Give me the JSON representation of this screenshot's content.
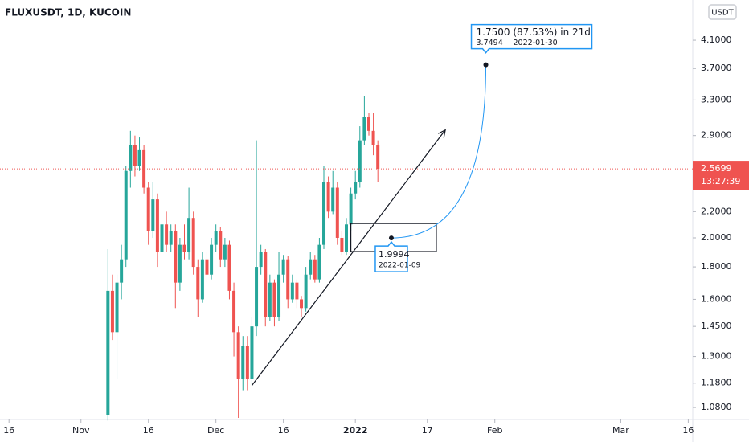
{
  "chart_data": {
    "type": "candlestick",
    "title": "FLUXUSDT, 1D, KUCOIN",
    "currency": "USDT",
    "log_scale": true,
    "up_color": "#26a69a",
    "down_color": "#ef5350",
    "x": [
      "2021-11-07",
      "2021-11-08",
      "2021-11-09",
      "2021-11-10",
      "2021-11-11",
      "2021-11-12",
      "2021-11-13",
      "2021-11-14",
      "2021-11-15",
      "2021-11-16",
      "2021-11-17",
      "2021-11-18",
      "2021-11-19",
      "2021-11-20",
      "2021-11-21",
      "2021-11-22",
      "2021-11-23",
      "2021-11-24",
      "2021-11-25",
      "2021-11-26",
      "2021-11-27",
      "2021-11-28",
      "2021-11-29",
      "2021-11-30",
      "2021-12-01",
      "2021-12-02",
      "2021-12-03",
      "2021-12-04",
      "2021-12-05",
      "2021-12-06",
      "2021-12-07",
      "2021-12-08",
      "2021-12-09",
      "2021-12-10",
      "2021-12-11",
      "2021-12-12",
      "2021-12-13",
      "2021-12-14",
      "2021-12-15",
      "2021-12-16",
      "2021-12-17",
      "2021-12-18",
      "2021-12-19",
      "2021-12-20",
      "2021-12-21",
      "2021-12-22",
      "2021-12-23",
      "2021-12-24",
      "2021-12-25",
      "2021-12-26",
      "2021-12-27",
      "2021-12-28",
      "2021-12-29",
      "2021-12-30",
      "2021-12-31",
      "2022-01-01",
      "2022-01-02",
      "2022-01-03",
      "2022-01-04",
      "2022-01-05",
      "2022-01-06"
    ],
    "open": [
      1.05,
      1.65,
      1.42,
      1.7,
      1.85,
      2.55,
      2.8,
      2.6,
      2.75,
      2.4,
      2.05,
      2.3,
      1.9,
      2.1,
      1.95,
      2.05,
      1.7,
      1.95,
      1.9,
      2.15,
      1.8,
      1.6,
      1.85,
      1.75,
      1.95,
      2.05,
      1.85,
      1.95,
      1.65,
      1.42,
      1.2,
      1.35,
      1.2,
      1.45,
      1.8,
      1.9,
      1.5,
      1.7,
      1.5,
      1.75,
      1.85,
      1.6,
      1.7,
      1.6,
      1.55,
      1.75,
      1.85,
      1.72,
      1.95,
      2.45,
      2.2,
      2.4,
      2.0,
      1.9,
      2.1,
      2.35,
      2.45,
      2.85,
      3.1,
      2.95,
      2.8
    ],
    "high": [
      1.92,
      1.75,
      1.75,
      1.95,
      2.6,
      2.95,
      2.9,
      2.88,
      2.8,
      2.45,
      2.45,
      2.35,
      2.15,
      2.2,
      2.1,
      2.1,
      2.0,
      2.1,
      2.4,
      2.2,
      1.85,
      1.9,
      1.9,
      2.0,
      2.1,
      2.08,
      2.0,
      1.98,
      1.7,
      1.45,
      1.4,
      1.4,
      1.5,
      2.85,
      1.95,
      1.92,
      1.75,
      1.72,
      1.9,
      1.88,
      1.87,
      1.75,
      1.72,
      1.62,
      1.8,
      1.9,
      1.88,
      2.0,
      2.6,
      2.5,
      2.55,
      2.45,
      2.05,
      2.15,
      2.4,
      2.55,
      3.0,
      3.35,
      3.15,
      3.15,
      2.85
    ],
    "low": [
      1.03,
      1.38,
      1.2,
      1.6,
      1.8,
      2.4,
      2.5,
      2.55,
      2.35,
      1.95,
      2.0,
      1.8,
      1.85,
      1.9,
      1.9,
      1.55,
      1.65,
      1.85,
      1.85,
      1.75,
      1.5,
      1.58,
      1.7,
      1.72,
      1.9,
      1.8,
      1.8,
      1.6,
      1.3,
      1.04,
      1.15,
      1.15,
      1.17,
      1.4,
      1.75,
      1.45,
      1.48,
      1.45,
      1.48,
      1.7,
      1.55,
      1.58,
      1.55,
      1.5,
      1.53,
      1.72,
      1.7,
      1.7,
      1.92,
      2.15,
      2.18,
      1.95,
      1.88,
      1.88,
      2.05,
      2.3,
      2.4,
      2.8,
      2.9,
      2.7,
      2.45
    ],
    "close": [
      1.65,
      1.42,
      1.7,
      1.85,
      2.55,
      2.8,
      2.6,
      2.75,
      2.4,
      2.05,
      2.3,
      1.9,
      2.1,
      1.95,
      2.05,
      1.7,
      1.95,
      1.9,
      2.15,
      1.8,
      1.6,
      1.85,
      1.75,
      1.95,
      2.05,
      1.85,
      1.95,
      1.65,
      1.42,
      1.2,
      1.35,
      1.2,
      1.45,
      1.8,
      1.9,
      1.5,
      1.7,
      1.5,
      1.75,
      1.85,
      1.6,
      1.7,
      1.6,
      1.55,
      1.75,
      1.85,
      1.72,
      1.95,
      2.45,
      2.2,
      2.4,
      2.0,
      1.9,
      2.1,
      2.35,
      2.45,
      2.85,
      3.1,
      2.95,
      2.8,
      2.5699
    ],
    "xlim": [
      "2021-10-14",
      "2022-03-17"
    ],
    "xticks": [
      {
        "value": "2021-10-16",
        "label": "16"
      },
      {
        "value": "2021-11-01",
        "label": "Nov"
      },
      {
        "value": "2021-11-16",
        "label": "16"
      },
      {
        "value": "2021-12-01",
        "label": "Dec"
      },
      {
        "value": "2021-12-16",
        "label": "16"
      },
      {
        "value": "2022-01-01",
        "label": "2022"
      },
      {
        "value": "2022-01-17",
        "label": "17"
      },
      {
        "value": "2022-02-01",
        "label": "Feb"
      },
      {
        "value": "2022-03-01",
        "label": "Mar"
      },
      {
        "value": "2022-03-16",
        "label": "16"
      }
    ],
    "ylim": [
      1.034,
      4.745
    ],
    "yticks": [
      {
        "value": 4.1,
        "label": "4.1000"
      },
      {
        "value": 3.7,
        "label": "3.7000"
      },
      {
        "value": 3.3,
        "label": "3.3000"
      },
      {
        "value": 2.9,
        "label": "2.9000"
      },
      {
        "value": 2.2,
        "label": "2.2000"
      },
      {
        "value": 2,
        "label": "2.0000"
      },
      {
        "value": 1.8,
        "label": "1.8000"
      },
      {
        "value": 1.6,
        "label": "1.6000"
      },
      {
        "value": 1.45,
        "label": "1.4500"
      },
      {
        "value": 1.3,
        "label": "1.3000"
      },
      {
        "value": 1.18,
        "label": "1.1800"
      },
      {
        "value": 1.08,
        "label": "1.0800"
      }
    ],
    "last_price": 2.5699,
    "countdown": "13:27:39",
    "trend_line": {
      "from": [
        "2021-12-09",
        1.17
      ],
      "to": [
        "2022-01-21",
        2.96
      ]
    },
    "box": {
      "from": [
        "2021-12-31",
        2.107
      ],
      "to": [
        "2022-01-19",
        1.903
      ]
    },
    "projection": {
      "start": {
        "date": "2022-01-09",
        "price": 1.9994
      },
      "target": {
        "date": "2022-01-30",
        "price": 3.7494
      },
      "change_label": "1.7500 (87.53%) in 21d"
    }
  }
}
